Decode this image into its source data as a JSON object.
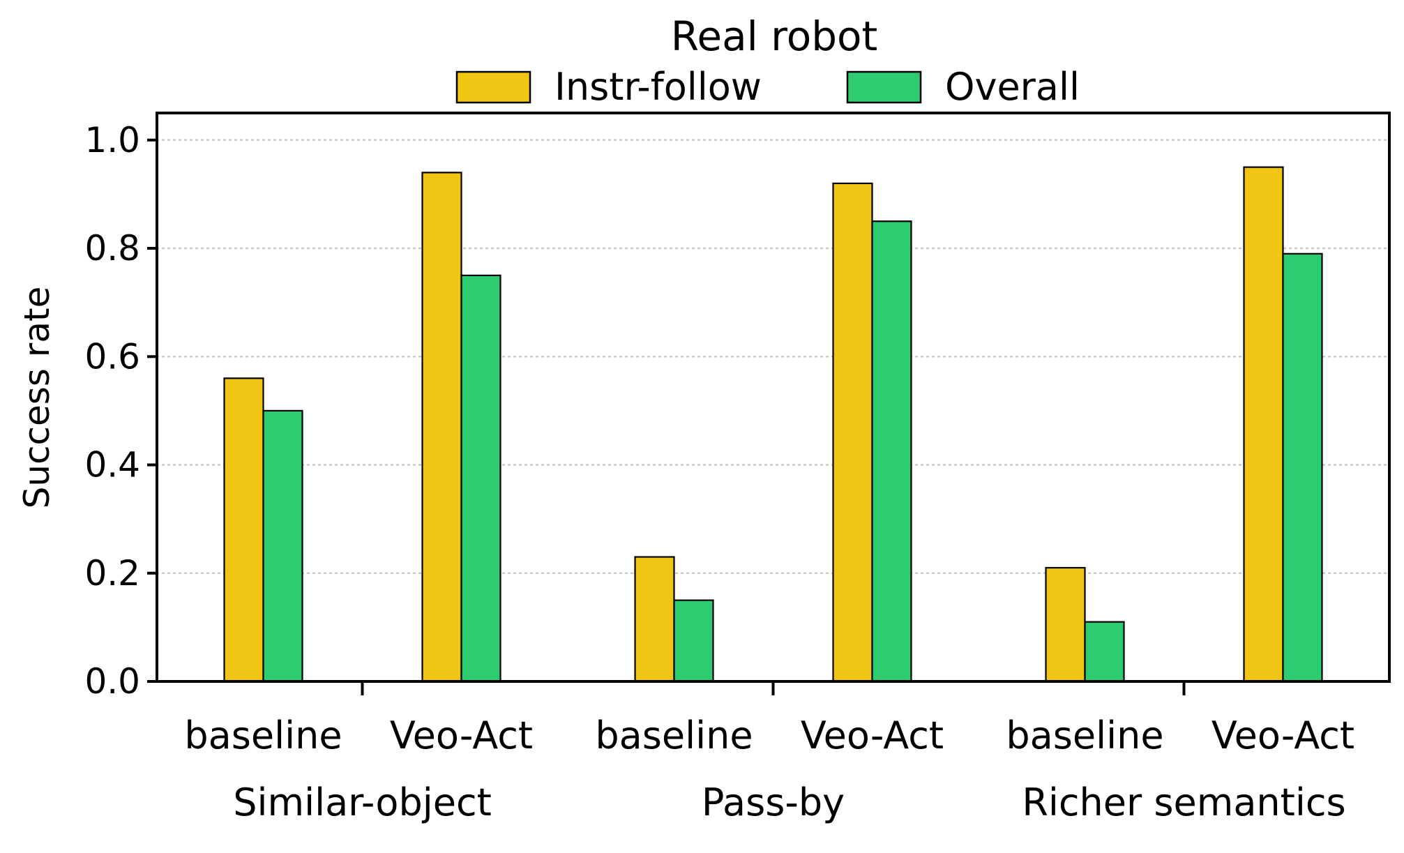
{
  "chart_data": {
    "type": "bar",
    "title": "Real robot",
    "xlabel": "",
    "ylabel": "Success rate",
    "ylim": [
      0,
      1.05
    ],
    "yticks": [
      "0.0",
      "0.2",
      "0.4",
      "0.6",
      "0.8",
      "1.0"
    ],
    "grid": "y, dotted",
    "legend_position": "top-center",
    "groups": [
      {
        "label": "Similar-object",
        "methods": [
          {
            "label": "baseline",
            "values": [
              0.56,
              0.5
            ]
          },
          {
            "label": "Veo-Act",
            "values": [
              0.94,
              0.75
            ]
          }
        ]
      },
      {
        "label": "Pass-by",
        "methods": [
          {
            "label": "baseline",
            "values": [
              0.23,
              0.15
            ]
          },
          {
            "label": "Veo-Act",
            "values": [
              0.92,
              0.85
            ]
          }
        ]
      },
      {
        "label": "Richer semantics",
        "methods": [
          {
            "label": "baseline",
            "values": [
              0.21,
              0.11
            ]
          },
          {
            "label": "Veo-Act",
            "values": [
              0.95,
              0.79
            ]
          }
        ]
      }
    ],
    "series": [
      {
        "name": "Instr-follow",
        "color": "#f0c514"
      },
      {
        "name": "Overall",
        "color": "#2ecc71"
      }
    ]
  }
}
